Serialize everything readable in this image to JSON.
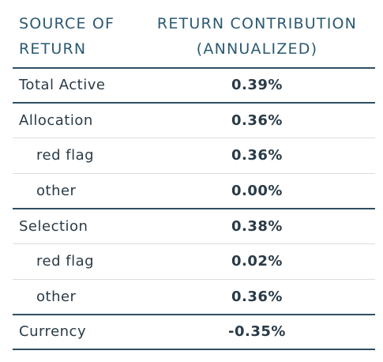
{
  "table": {
    "headers": {
      "source": [
        "SOURCE OF",
        "RETURN"
      ],
      "contribution": [
        "RETURN CONTRIBUTION",
        "(ANNUALIZED)"
      ]
    },
    "rows": [
      {
        "label": "Total Active",
        "value": "0.39%",
        "level": 0
      },
      {
        "label": "Allocation",
        "value": "0.36%",
        "level": 0
      },
      {
        "label": "red flag",
        "value": "0.36%",
        "level": 1
      },
      {
        "label": "other",
        "value": "0.00%",
        "level": 1
      },
      {
        "label": "Selection",
        "value": "0.38%",
        "level": 0
      },
      {
        "label": "red flag",
        "value": "0.02%",
        "level": 1
      },
      {
        "label": "other",
        "value": "0.36%",
        "level": 1
      },
      {
        "label": "Currency",
        "value": "-0.35%",
        "level": 0
      }
    ]
  },
  "colors": {
    "header_text": "#2b5a72",
    "body_text": "#2a3b47",
    "thick_rule": "#2f4f62",
    "thin_rule": "#d8dde1"
  }
}
